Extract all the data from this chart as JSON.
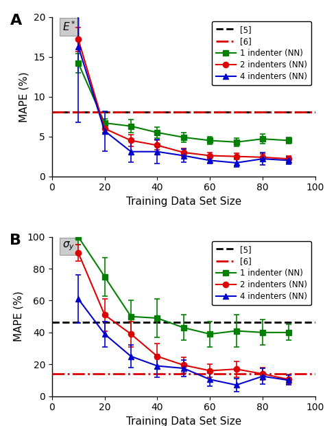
{
  "x": [
    10,
    20,
    30,
    40,
    50,
    60,
    70,
    80,
    90
  ],
  "panel_A": {
    "label_text": "$E^*$",
    "hline_black": 8.1,
    "hline_red": 8.1,
    "ylim": [
      0,
      20
    ],
    "yticks": [
      0,
      5,
      10,
      15,
      20
    ],
    "green_y": [
      14.2,
      6.7,
      6.3,
      5.5,
      4.9,
      4.5,
      4.3,
      4.7,
      4.5
    ],
    "green_err": [
      1.2,
      0.5,
      0.8,
      0.7,
      0.6,
      0.5,
      0.5,
      0.6,
      0.4
    ],
    "red_y": [
      17.2,
      6.0,
      4.5,
      3.9,
      3.0,
      2.6,
      2.5,
      2.4,
      2.2
    ],
    "red_err": [
      1.5,
      0.5,
      0.7,
      0.6,
      0.5,
      0.4,
      0.4,
      0.4,
      0.4
    ],
    "blue_y": [
      16.3,
      5.7,
      3.1,
      3.1,
      2.6,
      2.0,
      1.7,
      2.2,
      2.0
    ],
    "blue_err": [
      9.5,
      2.5,
      1.3,
      1.5,
      0.8,
      0.4,
      0.5,
      0.8,
      0.5
    ]
  },
  "panel_B": {
    "label_text": "$\\sigma_y$",
    "hline_black": 46.5,
    "hline_red": 14.0,
    "ylim": [
      0,
      100
    ],
    "yticks": [
      0,
      20,
      40,
      60,
      80,
      100
    ],
    "green_y": [
      100.0,
      75.0,
      50.0,
      49.0,
      43.0,
      39.0,
      41.0,
      40.0,
      40.0
    ],
    "green_err": [
      5.0,
      12.0,
      10.0,
      12.0,
      8.0,
      8.0,
      10.0,
      8.0,
      5.0
    ],
    "red_y": [
      90.0,
      51.0,
      39.0,
      25.0,
      19.5,
      16.0,
      17.0,
      14.0,
      10.5
    ],
    "red_err": [
      5.0,
      10.0,
      8.0,
      8.0,
      5.0,
      4.0,
      5.0,
      4.0,
      3.0
    ],
    "blue_y": [
      61.0,
      39.0,
      25.0,
      19.0,
      17.5,
      10.5,
      7.0,
      12.5,
      10.0
    ],
    "blue_err": [
      15.0,
      8.0,
      7.0,
      7.0,
      5.0,
      4.0,
      4.0,
      5.0,
      3.0
    ]
  },
  "color_green": "#008000",
  "color_red": "#dd0000",
  "color_blue": "#0000cc",
  "color_black": "#000000",
  "ylabel": "MAPE (%)",
  "xlabel": "Training Data Set Size",
  "panel_letters": [
    "A",
    "B"
  ]
}
